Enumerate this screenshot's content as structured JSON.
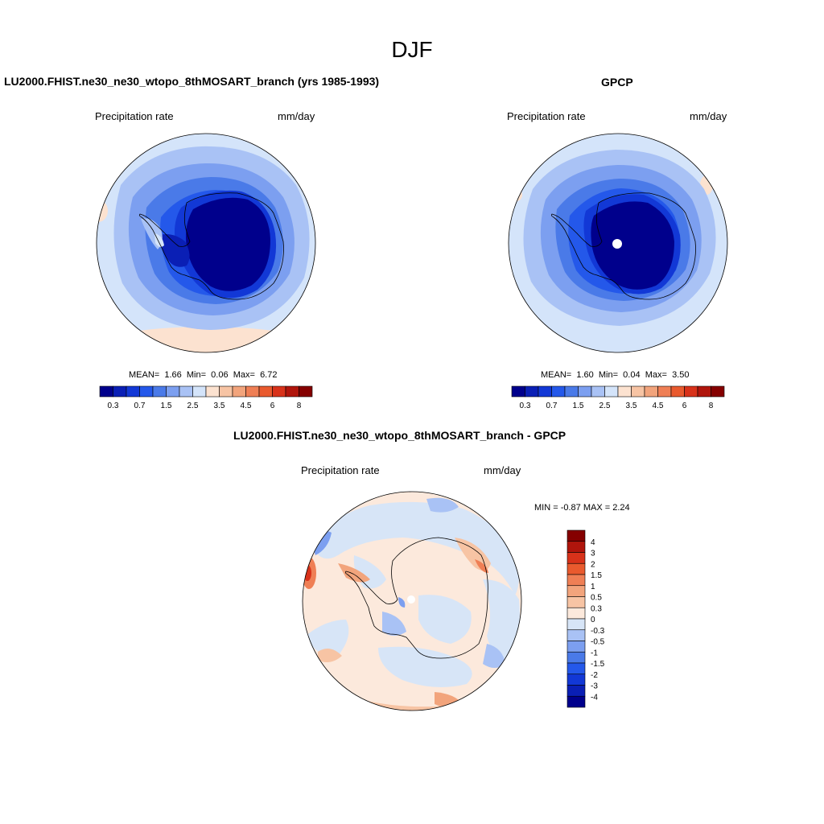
{
  "title": "DJF",
  "panels": [
    {
      "title": "LU2000.FHIST.ne30_ne30_wtopo_8thMOSART_branch (yrs 1985-1993)",
      "left_label": "Precipitation rate",
      "right_label": "mm/day",
      "stats": {
        "mean_label": "MEAN=",
        "mean": "1.66",
        "min_label": "Min=",
        "min": "0.06",
        "max_label": "Max=",
        "max": "6.72"
      }
    },
    {
      "title": "GPCP",
      "left_label": "Precipitation rate",
      "right_label": "mm/day",
      "stats": {
        "mean_label": "MEAN=",
        "mean": "1.60",
        "min_label": "Min=",
        "min": "0.04",
        "max_label": "Max=",
        "max": "3.50"
      }
    }
  ],
  "diff_panel": {
    "title": "LU2000.FHIST.ne30_ne30_wtopo_8thMOSART_branch - GPCP",
    "left_label": "Precipitation rate",
    "right_label": "mm/day",
    "minmax": "MIN =  -0.87 MAX =   2.24"
  },
  "colorbar_main": {
    "colors": [
      "#00008c",
      "#0a1fb5",
      "#1238d6",
      "#2458ea",
      "#4a7ae8",
      "#7c9ff0",
      "#a9c2f5",
      "#d4e4fa",
      "#fce2d0",
      "#f7c4a4",
      "#f2a47c",
      "#ef7f55",
      "#e95a2e",
      "#d8321a",
      "#b0150c",
      "#850000"
    ],
    "tick_labels": [
      "0.3",
      "0.7",
      "1.5",
      "2.5",
      "3.5",
      "4.5",
      "6",
      "8"
    ]
  },
  "colorbar_diff": {
    "colors": [
      "#850000",
      "#b0150c",
      "#d8321a",
      "#e95a2e",
      "#ef7f55",
      "#f2a47c",
      "#f7c4a4",
      "#fce9dc",
      "#d7e5f7",
      "#a9c2f5",
      "#7c9ff0",
      "#4a7ae8",
      "#2458ea",
      "#1238d6",
      "#0a1fb5",
      "#00008c"
    ],
    "tick_labels": [
      "4",
      "3",
      "2",
      "1.5",
      "1",
      "0.5",
      "0.3",
      "0",
      "-0.3",
      "-0.5",
      "-1",
      "-1.5",
      "-2",
      "-3",
      "-4"
    ]
  }
}
